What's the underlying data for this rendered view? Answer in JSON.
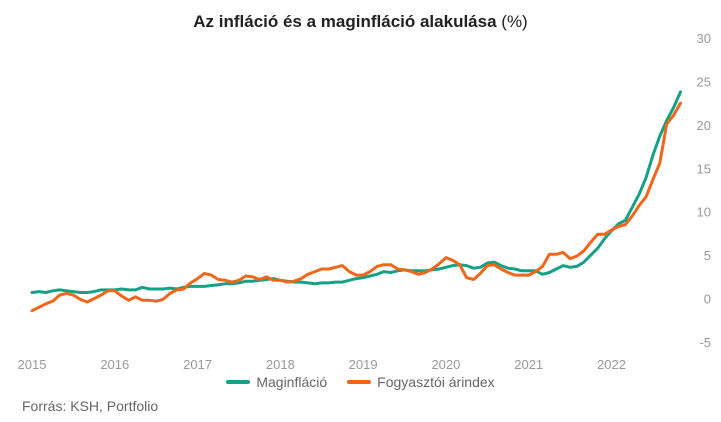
{
  "chart_data": {
    "type": "line",
    "title_main": "Az infláció és a maginfláció alakulása",
    "title_unit": "(%)",
    "ylim": [
      -5,
      30
    ],
    "yticks": [
      "30",
      "25",
      "20",
      "15",
      "10",
      "5",
      "0",
      "-5"
    ],
    "xticks": [
      "2015",
      "2016",
      "2017",
      "2018",
      "2019",
      "2020",
      "2021",
      "2022"
    ],
    "grid": false,
    "legend_position": "bottom",
    "source": "Forrás: KSH, Portfolio",
    "series": [
      {
        "name": "Maginfláció",
        "color": "#16a085",
        "points": [
          [
            2015.0,
            0.7
          ],
          [
            2015.083,
            0.8
          ],
          [
            2015.167,
            0.7
          ],
          [
            2015.25,
            0.9
          ],
          [
            2015.333,
            1.0
          ],
          [
            2015.417,
            0.9
          ],
          [
            2015.5,
            0.8
          ],
          [
            2015.583,
            0.7
          ],
          [
            2015.667,
            0.7
          ],
          [
            2015.75,
            0.8
          ],
          [
            2015.833,
            1.0
          ],
          [
            2015.917,
            1.0
          ],
          [
            2016.0,
            1.0
          ],
          [
            2016.083,
            1.1
          ],
          [
            2016.167,
            1.0
          ],
          [
            2016.25,
            1.0
          ],
          [
            2016.333,
            1.3
          ],
          [
            2016.417,
            1.1
          ],
          [
            2016.5,
            1.1
          ],
          [
            2016.583,
            1.1
          ],
          [
            2016.667,
            1.2
          ],
          [
            2016.75,
            1.1
          ],
          [
            2016.833,
            1.3
          ],
          [
            2016.917,
            1.4
          ],
          [
            2017.0,
            1.4
          ],
          [
            2017.083,
            1.4
          ],
          [
            2017.167,
            1.5
          ],
          [
            2017.25,
            1.6
          ],
          [
            2017.333,
            1.7
          ],
          [
            2017.417,
            1.7
          ],
          [
            2017.5,
            1.8
          ],
          [
            2017.583,
            2.0
          ],
          [
            2017.667,
            2.0
          ],
          [
            2017.75,
            2.1
          ],
          [
            2017.833,
            2.2
          ],
          [
            2017.917,
            2.3
          ],
          [
            2018.0,
            2.1
          ],
          [
            2018.083,
            2.0
          ],
          [
            2018.167,
            1.9
          ],
          [
            2018.25,
            1.9
          ],
          [
            2018.333,
            1.8
          ],
          [
            2018.417,
            1.7
          ],
          [
            2018.5,
            1.8
          ],
          [
            2018.583,
            1.8
          ],
          [
            2018.667,
            1.9
          ],
          [
            2018.75,
            1.9
          ],
          [
            2018.833,
            2.1
          ],
          [
            2018.917,
            2.3
          ],
          [
            2019.0,
            2.4
          ],
          [
            2019.083,
            2.6
          ],
          [
            2019.167,
            2.8
          ],
          [
            2019.25,
            3.1
          ],
          [
            2019.333,
            3.0
          ],
          [
            2019.417,
            3.2
          ],
          [
            2019.5,
            3.3
          ],
          [
            2019.583,
            3.2
          ],
          [
            2019.667,
            3.2
          ],
          [
            2019.75,
            3.2
          ],
          [
            2019.833,
            3.3
          ],
          [
            2019.917,
            3.4
          ],
          [
            2020.0,
            3.6
          ],
          [
            2020.083,
            3.8
          ],
          [
            2020.167,
            3.9
          ],
          [
            2020.25,
            3.8
          ],
          [
            2020.333,
            3.5
          ],
          [
            2020.417,
            3.6
          ],
          [
            2020.5,
            4.1
          ],
          [
            2020.583,
            4.2
          ],
          [
            2020.667,
            3.8
          ],
          [
            2020.75,
            3.5
          ],
          [
            2020.833,
            3.4
          ],
          [
            2020.917,
            3.2
          ],
          [
            2021.0,
            3.2
          ],
          [
            2021.083,
            3.2
          ],
          [
            2021.167,
            2.8
          ],
          [
            2021.25,
            3.0
          ],
          [
            2021.333,
            3.4
          ],
          [
            2021.417,
            3.8
          ],
          [
            2021.5,
            3.6
          ],
          [
            2021.583,
            3.7
          ],
          [
            2021.667,
            4.2
          ],
          [
            2021.75,
            5.0
          ],
          [
            2021.833,
            5.8
          ],
          [
            2021.917,
            6.9
          ],
          [
            2022.0,
            7.8
          ],
          [
            2022.083,
            8.6
          ],
          [
            2022.167,
            9.0
          ],
          [
            2022.25,
            10.5
          ],
          [
            2022.333,
            12.0
          ],
          [
            2022.417,
            13.9
          ],
          [
            2022.5,
            16.5
          ],
          [
            2022.583,
            18.7
          ],
          [
            2022.667,
            20.5
          ],
          [
            2022.75,
            22.0
          ],
          [
            2022.833,
            23.8
          ]
        ]
      },
      {
        "name": "Fogyasztói árindex",
        "color": "#f0661a",
        "points": [
          [
            2015.0,
            -1.4
          ],
          [
            2015.083,
            -1.0
          ],
          [
            2015.167,
            -0.6
          ],
          [
            2015.25,
            -0.3
          ],
          [
            2015.333,
            0.4
          ],
          [
            2015.417,
            0.6
          ],
          [
            2015.5,
            0.4
          ],
          [
            2015.583,
            -0.1
          ],
          [
            2015.667,
            -0.4
          ],
          [
            2015.75,
            0.0
          ],
          [
            2015.833,
            0.4
          ],
          [
            2015.917,
            0.9
          ],
          [
            2016.0,
            0.9
          ],
          [
            2016.083,
            0.3
          ],
          [
            2016.167,
            -0.2
          ],
          [
            2016.25,
            0.2
          ],
          [
            2016.333,
            -0.2
          ],
          [
            2016.417,
            -0.2
          ],
          [
            2016.5,
            -0.3
          ],
          [
            2016.583,
            -0.1
          ],
          [
            2016.667,
            0.6
          ],
          [
            2016.75,
            1.0
          ],
          [
            2016.833,
            1.1
          ],
          [
            2016.917,
            1.8
          ],
          [
            2017.0,
            2.3
          ],
          [
            2017.083,
            2.9
          ],
          [
            2017.167,
            2.7
          ],
          [
            2017.25,
            2.2
          ],
          [
            2017.333,
            2.1
          ],
          [
            2017.417,
            1.9
          ],
          [
            2017.5,
            2.1
          ],
          [
            2017.583,
            2.6
          ],
          [
            2017.667,
            2.5
          ],
          [
            2017.75,
            2.2
          ],
          [
            2017.833,
            2.5
          ],
          [
            2017.917,
            2.1
          ],
          [
            2018.0,
            2.1
          ],
          [
            2018.083,
            1.9
          ],
          [
            2018.167,
            2.0
          ],
          [
            2018.25,
            2.3
          ],
          [
            2018.333,
            2.8
          ],
          [
            2018.417,
            3.1
          ],
          [
            2018.5,
            3.4
          ],
          [
            2018.583,
            3.4
          ],
          [
            2018.667,
            3.6
          ],
          [
            2018.75,
            3.8
          ],
          [
            2018.833,
            3.1
          ],
          [
            2018.917,
            2.7
          ],
          [
            2019.0,
            2.7
          ],
          [
            2019.083,
            3.1
          ],
          [
            2019.167,
            3.7
          ],
          [
            2019.25,
            3.9
          ],
          [
            2019.333,
            3.9
          ],
          [
            2019.417,
            3.4
          ],
          [
            2019.5,
            3.3
          ],
          [
            2019.583,
            3.1
          ],
          [
            2019.667,
            2.8
          ],
          [
            2019.75,
            3.0
          ],
          [
            2019.833,
            3.4
          ],
          [
            2019.917,
            4.0
          ],
          [
            2020.0,
            4.7
          ],
          [
            2020.083,
            4.4
          ],
          [
            2020.167,
            3.9
          ],
          [
            2020.25,
            2.4
          ],
          [
            2020.333,
            2.2
          ],
          [
            2020.417,
            2.9
          ],
          [
            2020.5,
            3.8
          ],
          [
            2020.583,
            3.9
          ],
          [
            2020.667,
            3.4
          ],
          [
            2020.75,
            3.0
          ],
          [
            2020.833,
            2.7
          ],
          [
            2020.917,
            2.7
          ],
          [
            2021.0,
            2.7
          ],
          [
            2021.083,
            3.1
          ],
          [
            2021.167,
            3.7
          ],
          [
            2021.25,
            5.1
          ],
          [
            2021.333,
            5.1
          ],
          [
            2021.417,
            5.3
          ],
          [
            2021.5,
            4.6
          ],
          [
            2021.583,
            4.9
          ],
          [
            2021.667,
            5.5
          ],
          [
            2021.75,
            6.5
          ],
          [
            2021.833,
            7.4
          ],
          [
            2021.917,
            7.4
          ],
          [
            2022.0,
            7.9
          ],
          [
            2022.083,
            8.3
          ],
          [
            2022.167,
            8.5
          ],
          [
            2022.25,
            9.5
          ],
          [
            2022.333,
            10.7
          ],
          [
            2022.417,
            11.7
          ],
          [
            2022.5,
            13.7
          ],
          [
            2022.583,
            15.6
          ],
          [
            2022.667,
            20.1
          ],
          [
            2022.75,
            21.1
          ],
          [
            2022.833,
            22.5
          ]
        ]
      }
    ]
  }
}
